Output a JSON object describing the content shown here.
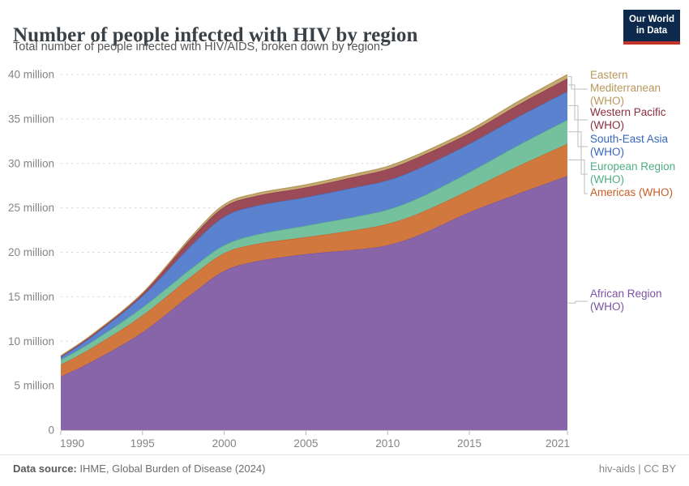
{
  "header": {
    "title": "Number of people infected with HIV by region",
    "subtitle": "Total number of people infected with HIV/AIDS, broken down by region.",
    "logo": {
      "line1": "Our World",
      "line2": "in Data",
      "bg_color": "#0d2a4c",
      "bar_color": "#c43329"
    }
  },
  "chart_data": {
    "type": "area",
    "stacked": true,
    "title": "Number of people infected with HIV by region",
    "unit": "million people",
    "grid": "dashed horizontal",
    "legend_position": "right",
    "xlabel": "",
    "ylabel": "",
    "ylim": [
      0,
      40
    ],
    "x": [
      1990,
      1992,
      1995,
      1998,
      2000,
      2002,
      2005,
      2008,
      2010,
      2012,
      2015,
      2018,
      2021
    ],
    "xticks": [
      1990,
      1995,
      2000,
      2005,
      2010,
      2015,
      2021
    ],
    "yticks": [
      {
        "value": 0,
        "label": "0"
      },
      {
        "value": 5,
        "label": "5 million"
      },
      {
        "value": 10,
        "label": "10 million"
      },
      {
        "value": 15,
        "label": "15 million"
      },
      {
        "value": 20,
        "label": "20 million"
      },
      {
        "value": 25,
        "label": "25 million"
      },
      {
        "value": 30,
        "label": "30 million"
      },
      {
        "value": 35,
        "label": "35 million"
      },
      {
        "value": 40,
        "label": "40 million"
      }
    ],
    "series": [
      {
        "name": "African Region (WHO)",
        "slug": "african-region-who",
        "legend_lines": [
          "African Region",
          "(WHO)"
        ],
        "fill": "#8765a8",
        "stroke": "#7a54a0",
        "label_color": "#7c51a3",
        "values": [
          6.0,
          7.8,
          11.0,
          15.3,
          17.9,
          19.0,
          19.8,
          20.3,
          20.8,
          22.0,
          24.5,
          26.6,
          28.6
        ]
      },
      {
        "name": "Americas (WHO)",
        "slug": "americas-who",
        "legend_lines": [
          "Americas (WHO)"
        ],
        "fill": "#d1783f",
        "stroke": "#c4642c",
        "label_color": "#c85e27",
        "values": [
          1.35,
          1.55,
          1.9,
          2.0,
          2.0,
          1.95,
          1.9,
          2.2,
          2.4,
          2.45,
          2.5,
          3.1,
          3.6
        ]
      },
      {
        "name": "European Region (WHO)",
        "slug": "european-region-who",
        "legend_lines": [
          "European Region",
          "(WHO)"
        ],
        "fill": "#75c09d",
        "stroke": "#57b189",
        "label_color": "#4fad84",
        "values": [
          0.55,
          0.7,
          0.9,
          0.9,
          0.9,
          1.05,
          1.3,
          1.5,
          1.6,
          1.75,
          2.0,
          2.35,
          2.7
        ]
      },
      {
        "name": "South-East Asia (WHO)",
        "slug": "south-east-asia-who",
        "legend_lines": [
          "South-East Asia",
          "(WHO)"
        ],
        "fill": "#5a82ce",
        "stroke": "#4470c0",
        "label_color": "#3767bc",
        "values": [
          0.3,
          0.6,
          1.3,
          2.6,
          3.2,
          3.25,
          3.2,
          3.3,
          3.3,
          3.3,
          3.2,
          3.2,
          3.2
        ]
      },
      {
        "name": "Western Pacific (WHO)",
        "slug": "western-pacific-who",
        "legend_lines": [
          "Western Pacific",
          "(WHO)"
        ],
        "fill": "#9b4a58",
        "stroke": "#8c3544",
        "label_color": "#8c2f3e",
        "values": [
          0.12,
          0.17,
          0.25,
          0.8,
          1.1,
          1.1,
          1.1,
          1.2,
          1.27,
          1.3,
          1.2,
          1.35,
          1.45
        ]
      },
      {
        "name": "Eastern Mediterranean (WHO)",
        "slug": "eastern-mediterranean-who",
        "legend_lines": [
          "Eastern",
          "Mediterranean",
          "(WHO)"
        ],
        "fill": "#c3a972",
        "stroke": "#b6975a",
        "label_color": "#b8985c",
        "values": [
          0.04,
          0.05,
          0.08,
          0.2,
          0.27,
          0.28,
          0.3,
          0.3,
          0.3,
          0.31,
          0.33,
          0.38,
          0.45
        ]
      }
    ]
  },
  "footer": {
    "datasource_label": "Data source:",
    "datasource_value": " IHME, Global Burden of Disease (2024)",
    "right": "hiv-aids | CC BY"
  }
}
